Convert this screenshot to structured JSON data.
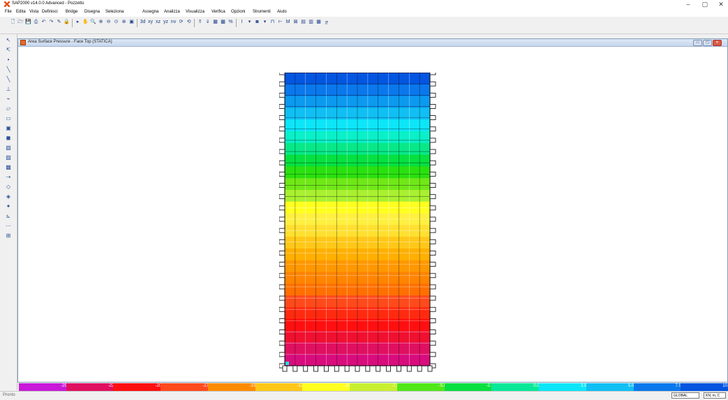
{
  "app": {
    "title": "SAP2000 v14.0.0 Advanced  - Pozzetto",
    "window_controls": [
      "–",
      "▢",
      "✕"
    ]
  },
  "menu": [
    "File",
    "Edita",
    "Vista",
    "Definisci",
    "Bridge",
    "Disegna",
    "Seleziona",
    "Assegna",
    "Analizza",
    "Visualizza",
    "Verifica",
    "Opzioni",
    "Strumenti",
    "Aiuto"
  ],
  "toolbar": {
    "items": [
      {
        "icon": "new-file-icon",
        "glyph": "🗋"
      },
      {
        "icon": "open-file-icon",
        "glyph": "🗁"
      },
      {
        "icon": "save-icon",
        "glyph": "💾"
      },
      {
        "icon": "print-icon",
        "glyph": "⎙"
      },
      {
        "icon": "undo-icon",
        "glyph": "↶"
      },
      {
        "icon": "redo-icon",
        "glyph": "↷"
      },
      {
        "icon": "pencil-icon",
        "glyph": "✎"
      },
      {
        "icon": "lock-icon",
        "glyph": "🔒"
      },
      {
        "icon": "run-analysis-icon",
        "glyph": "▸"
      },
      {
        "icon": "pan-icon",
        "glyph": "✋"
      },
      {
        "icon": "zoom-window-icon",
        "glyph": "🔍"
      },
      {
        "icon": "zoom-in-icon",
        "glyph": "⊕"
      },
      {
        "icon": "zoom-out-icon",
        "glyph": "⊖"
      },
      {
        "icon": "zoom-full-icon",
        "glyph": "⊙"
      },
      {
        "icon": "zoom-previous-icon",
        "glyph": "⊗"
      },
      {
        "icon": "refresh-view-icon",
        "glyph": "▣"
      },
      {
        "icon": "view-3d-icon",
        "glyph": "3d"
      },
      {
        "icon": "view-xy-icon",
        "glyph": "xy"
      },
      {
        "icon": "view-xz-icon",
        "glyph": "xz"
      },
      {
        "icon": "view-yz-icon",
        "glyph": "yz"
      },
      {
        "icon": "view-nv-icon",
        "glyph": "nv"
      },
      {
        "icon": "rotate-icon",
        "glyph": "⟳"
      },
      {
        "icon": "perspective-icon",
        "glyph": "⟲"
      },
      {
        "icon": "move-up-icon",
        "glyph": "⇑"
      },
      {
        "icon": "move-down-icon",
        "glyph": "⇓"
      },
      {
        "icon": "object-shrink-icon",
        "glyph": "▦"
      },
      {
        "icon": "display-options-icon",
        "glyph": "▩"
      },
      {
        "icon": "percent-icon",
        "glyph": "%"
      },
      {
        "icon": "show-undeformed-icon",
        "glyph": "I"
      },
      {
        "icon": "show-forces-icon",
        "glyph": "▾"
      },
      {
        "icon": "show-deformed-icon",
        "glyph": "◙"
      },
      {
        "icon": "show-stresses-icon",
        "glyph": "▾"
      },
      {
        "icon": "frame-diagram-icon",
        "glyph": "⊓"
      },
      {
        "icon": "shell-forces-icon",
        "glyph": "⊢"
      },
      {
        "icon": "virtual-work-icon",
        "glyph": "M"
      },
      {
        "icon": "design-icon",
        "glyph": "⊠"
      },
      {
        "icon": "steel-design-icon",
        "glyph": "▤"
      },
      {
        "icon": "concrete-design-icon",
        "glyph": "▥"
      },
      {
        "icon": "table-icon",
        "glyph": "▦"
      },
      {
        "icon": "bridge-icon",
        "glyph": "╔"
      }
    ]
  },
  "left_toolbar": [
    "pointer-icon",
    "reshape-icon",
    "dot-icon",
    "draw-frame-icon",
    "draw-cable-icon",
    "quick-draw-icon",
    "draw-link-icon",
    "draw-poly-area-icon",
    "draw-rect-area-icon",
    "quick-area-icon",
    "draw-solid-icon",
    "select-all-icon",
    "get-previous-icon",
    "clear-selection-icon",
    "intersecting-line-icon",
    "snap-points-icon",
    "snap-ends-icon",
    "snap-intersection-icon",
    "snap-perpendicular-icon",
    "snap-lines-icon",
    "snap-grid-icon"
  ],
  "left_toolbar_glyphs": [
    "↖",
    "↸",
    "•",
    "╲",
    "╲",
    "⊥",
    "⌁",
    "▱",
    "▭",
    "▣",
    "◼",
    "▧",
    "▨",
    "▩",
    "⇢",
    "◇",
    "◈",
    "✦",
    "⊾",
    "⋯",
    "⊞"
  ],
  "document_window": {
    "title": "Area Surface Pressure - Face Top (STATICA)",
    "buttons": [
      "▭",
      "▢",
      "✕"
    ]
  },
  "contour": {
    "bands": [
      "#0455e0",
      "#0a78ec",
      "#0c9af0",
      "#10bff4",
      "#0de6f8",
      "#0af0c8",
      "#08e888",
      "#06e040",
      "#2ae010",
      "#70e818",
      "#a8f030",
      "#ffff20",
      "#fff040",
      "#ffe030",
      "#ffc818",
      "#ffb000",
      "#ff9800",
      "#ff8400",
      "#ff7000",
      "#ff4a1c",
      "#ff2a10",
      "#ff1010",
      "#f01030",
      "#e01060",
      "#d80c7c"
    ]
  },
  "legend": {
    "segments": [
      {
        "color": "#c81ad8",
        "label": "-25.0"
      },
      {
        "color": "#e01060",
        "label": "-22.5"
      },
      {
        "color": "#ff1010",
        "label": "-20.0"
      },
      {
        "color": "#ff4a1c",
        "label": "-17.5"
      },
      {
        "color": "#ff8c00",
        "label": "-15.0"
      },
      {
        "color": "#ffc818",
        "label": "-12.5"
      },
      {
        "color": "#ffff20",
        "label": "-10.0"
      },
      {
        "color": "#c8f030",
        "label": "-7.5"
      },
      {
        "color": "#50e818",
        "label": "-5.0"
      },
      {
        "color": "#08e040",
        "label": "-2.5"
      },
      {
        "color": "#08e898",
        "label": "0.0"
      },
      {
        "color": "#0de6f8",
        "label": "2.5"
      },
      {
        "color": "#10bff4",
        "label": "5.0"
      },
      {
        "color": "#0a78ec",
        "label": "7.5"
      },
      {
        "color": "#0455e0",
        "label": "10.0"
      }
    ]
  },
  "status": {
    "left_text": "Pronto",
    "coord_system": "GLOBAL",
    "units": "KN, m, C"
  }
}
